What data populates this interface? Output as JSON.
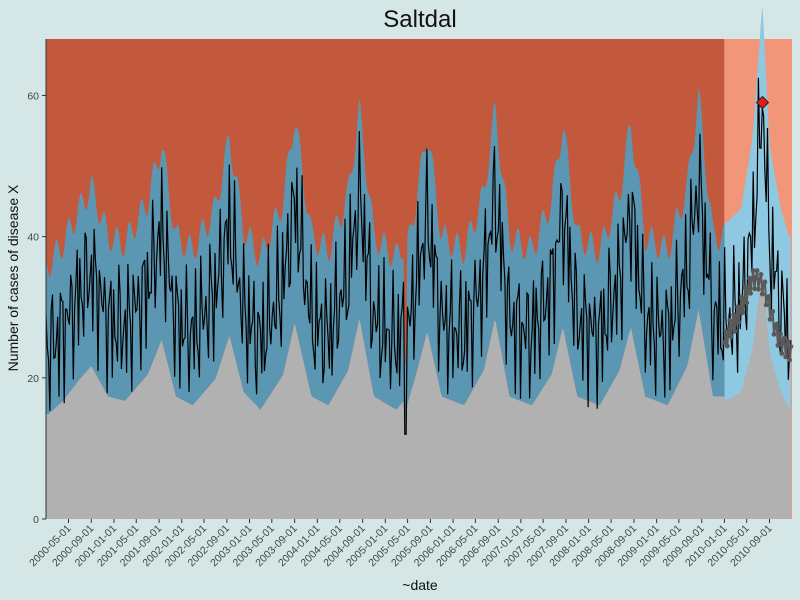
{
  "chart_data": {
    "type": "area",
    "title": "Saltdal",
    "xlabel": "~date",
    "ylabel": "Number of cases of disease X",
    "ylim": [
      0,
      68
    ],
    "xlim": [
      "2000-01-01",
      "2010-12-31"
    ],
    "y_ticks": [
      0,
      20,
      40,
      60
    ],
    "x_ticks": [
      "2000-05-01",
      "2000-09-01",
      "2001-01-01",
      "2001-05-01",
      "2001-09-01",
      "2002-01-01",
      "2002-05-01",
      "2002-09-01",
      "2003-01-01",
      "2003-05-01",
      "2003-09-01",
      "2004-01-01",
      "2004-05-01",
      "2004-09-01",
      "2005-01-01",
      "2005-05-01",
      "2005-09-01",
      "2006-01-01",
      "2006-05-01",
      "2006-09-01",
      "2007-01-01",
      "2007-05-01",
      "2007-09-01",
      "2008-01-01",
      "2008-05-01",
      "2008-09-01",
      "2009-01-01",
      "2009-05-01",
      "2009-09-01",
      "2010-01-01",
      "2010-05-01",
      "2010-09-01"
    ],
    "grid": false,
    "baseline_period_end": "2010-01-01",
    "series": [
      {
        "key": "observed",
        "smoothed_points": [
          [
            "2000-01-15",
            24
          ],
          [
            "2000-04-01",
            27
          ],
          [
            "2000-07-01",
            32
          ],
          [
            "2000-09-01",
            35
          ],
          [
            "2000-12-01",
            28
          ],
          [
            "2001-03-01",
            27
          ],
          [
            "2001-07-01",
            33
          ],
          [
            "2001-09-15",
            41
          ],
          [
            "2001-12-01",
            28
          ],
          [
            "2002-03-01",
            26
          ],
          [
            "2002-07-01",
            32
          ],
          [
            "2002-09-15",
            42
          ],
          [
            "2002-12-01",
            29
          ],
          [
            "2003-03-01",
            25
          ],
          [
            "2003-07-01",
            33
          ],
          [
            "2003-09-01",
            45
          ],
          [
            "2003-12-01",
            28
          ],
          [
            "2004-03-01",
            26
          ],
          [
            "2004-06-15",
            34
          ],
          [
            "2004-08-15",
            46
          ],
          [
            "2004-11-01",
            28
          ],
          [
            "2005-03-01",
            25
          ],
          [
            "2005-04-10",
            27
          ],
          [
            "2005-04-20",
            0
          ],
          [
            "2005-04-28",
            26
          ],
          [
            "2005-06-15",
            33
          ],
          [
            "2005-08-15",
            43
          ],
          [
            "2005-11-01",
            28
          ],
          [
            "2006-03-01",
            26
          ],
          [
            "2006-06-15",
            34
          ],
          [
            "2006-08-15",
            46
          ],
          [
            "2006-11-01",
            28
          ],
          [
            "2007-03-01",
            26
          ],
          [
            "2007-06-15",
            33
          ],
          [
            "2007-08-15",
            44
          ],
          [
            "2007-11-01",
            28
          ],
          [
            "2008-03-01",
            26
          ],
          [
            "2008-06-15",
            34
          ],
          [
            "2008-08-15",
            44
          ],
          [
            "2008-11-01",
            28
          ],
          [
            "2009-03-01",
            26
          ],
          [
            "2009-06-15",
            35
          ],
          [
            "2009-08-15",
            48
          ],
          [
            "2009-11-01",
            28
          ],
          [
            "2010-01-15",
            28
          ],
          [
            "2010-04-01",
            30
          ],
          [
            "2010-06-01",
            40
          ],
          [
            "2010-07-25",
            59
          ],
          [
            "2010-09-01",
            39
          ],
          [
            "2010-11-01",
            30
          ],
          [
            "2010-12-15",
            26
          ]
        ]
      },
      {
        "key": "expected",
        "smoothed_points": [
          [
            "2010-01-05",
            25
          ],
          [
            "2010-02-01",
            27
          ],
          [
            "2010-03-01",
            28
          ],
          [
            "2010-04-01",
            30
          ],
          [
            "2010-05-01",
            32
          ],
          [
            "2010-06-01",
            34
          ],
          [
            "2010-07-01",
            34
          ],
          [
            "2010-08-01",
            33
          ],
          [
            "2010-09-01",
            30
          ],
          [
            "2010-10-01",
            27
          ],
          [
            "2010-11-01",
            25
          ],
          [
            "2010-12-15",
            24
          ]
        ]
      }
    ],
    "alarm": {
      "date": "2010-07-25",
      "value": 59
    },
    "colors": {
      "plot_background": "#c2593d",
      "upper_band": "#5b97b2",
      "lower_band": "#b1b1b1",
      "prediction_background": "#f29679",
      "prediction_band": "#8ec8e1",
      "observed_line": "#000000",
      "expected_line": "#595959",
      "alarm_marker": "#e61a1a",
      "page_background": "#d5e6e6"
    }
  }
}
